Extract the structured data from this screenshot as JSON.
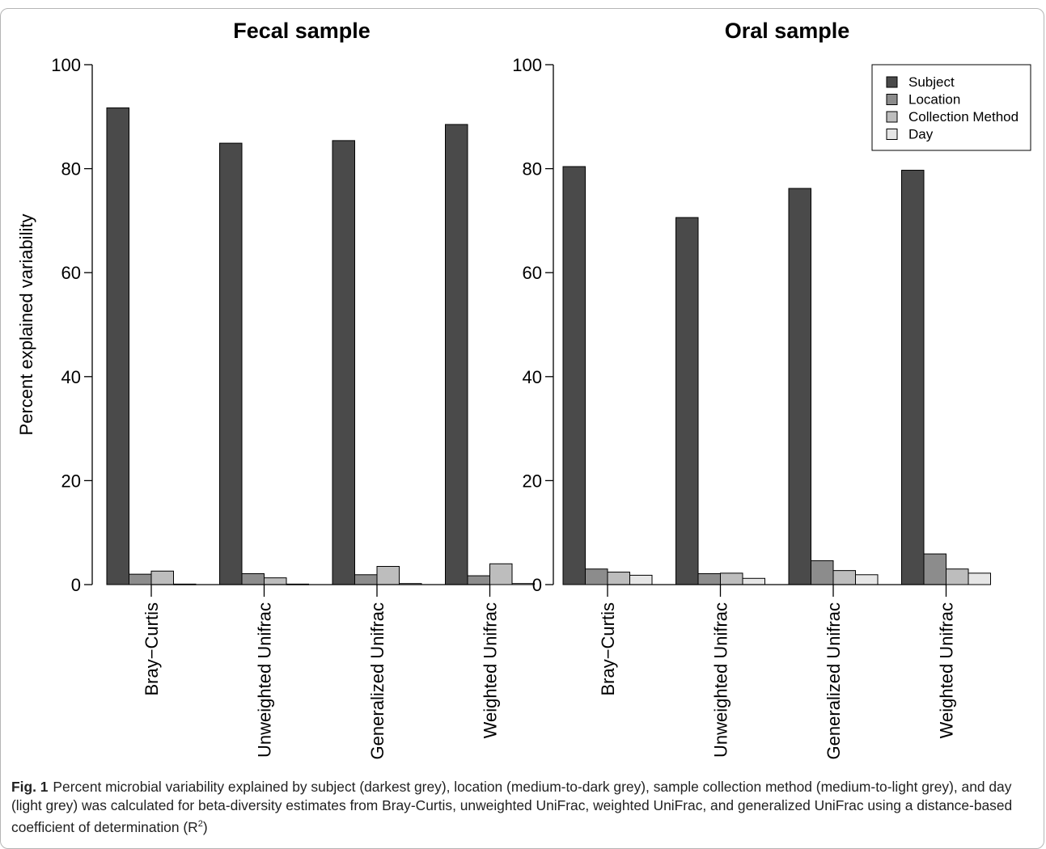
{
  "chart_data": [
    {
      "type": "bar",
      "title": "Fecal sample",
      "ylabel": "Percent explained variability",
      "xlabel": "",
      "ylim": [
        0,
        100
      ],
      "yticks": [
        0,
        20,
        40,
        60,
        80,
        100
      ],
      "categories": [
        "Bray−Curtis",
        "Unweighted Unifrac",
        "Generalized Unifrac",
        "Weighted Unifrac"
      ],
      "series": [
        {
          "name": "Subject",
          "color": "#4a4a4a",
          "values": [
            91.7,
            84.9,
            85.4,
            88.5
          ]
        },
        {
          "name": "Location",
          "color": "#8c8c8c",
          "values": [
            2.0,
            2.1,
            1.9,
            1.7
          ]
        },
        {
          "name": "Collection Method",
          "color": "#bdbdbd",
          "values": [
            2.6,
            1.3,
            3.5,
            4.0
          ]
        },
        {
          "name": "Day",
          "color": "#e6e6e6",
          "values": [
            0.1,
            0.1,
            0.2,
            0.2
          ]
        }
      ],
      "legend": "none"
    },
    {
      "type": "bar",
      "title": "Oral sample",
      "ylabel": "",
      "xlabel": "",
      "ylim": [
        0,
        100
      ],
      "yticks": [
        0,
        20,
        40,
        60,
        80,
        100
      ],
      "categories": [
        "Bray−Curtis",
        "Unweighted Unifrac",
        "Generalized Unifrac",
        "Weighted Unifrac"
      ],
      "series": [
        {
          "name": "Subject",
          "color": "#4a4a4a",
          "values": [
            80.4,
            70.6,
            76.2,
            79.7
          ]
        },
        {
          "name": "Location",
          "color": "#8c8c8c",
          "values": [
            3.0,
            2.1,
            4.6,
            5.9
          ]
        },
        {
          "name": "Collection Method",
          "color": "#bdbdbd",
          "values": [
            2.4,
            2.2,
            2.7,
            3.0
          ]
        },
        {
          "name": "Day",
          "color": "#e6e6e6",
          "values": [
            1.8,
            1.2,
            1.9,
            2.2
          ]
        }
      ],
      "legend": "top-right"
    }
  ],
  "caption": {
    "label": "Fig. 1",
    "text": "Percent microbial variability explained by subject (darkest grey), location (medium-to-dark grey), sample collection method (medium-to-light grey), and day (light grey) was calculated for beta-diversity estimates from Bray-Curtis, unweighted UniFrac, weighted UniFrac, and generalized UniFrac using a distance-based coefficient of determination (R",
    "superscript": "2",
    "closing": ")"
  }
}
